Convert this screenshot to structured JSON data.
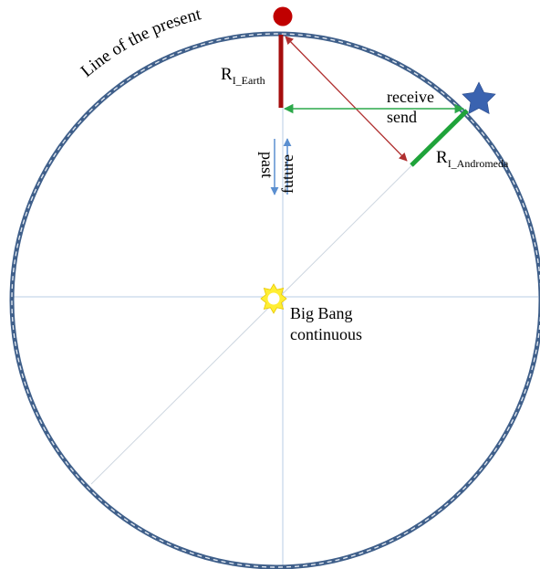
{
  "labels": {
    "line_of_present": "Line of the present",
    "r_earth_main": "R",
    "r_earth_sub": "I_Earth",
    "r_andromeda_main": "R",
    "r_andromeda_sub": "I_Andromeda",
    "receive": "receive",
    "send": "send",
    "past": "past",
    "future": "future",
    "big_bang_line1": "Big Bang",
    "big_bang_line2": "continuous"
  },
  "colors": {
    "circle_outer": "#3f5f8a",
    "circle_inner": "#dfe6ef",
    "axis": "#b8cce4",
    "earth_dot": "#c00000",
    "earth_radius": "#a50d0d",
    "signal_arrow": "#b03030",
    "andromeda_radius": "#1fa33a",
    "send_receive_arrow": "#2ca84a",
    "time_arrow": "#5b8fd0",
    "star": "#3a63b0",
    "sun": "#ffee33"
  },
  "icons": {
    "earth": "earth-dot-icon",
    "andromeda": "star-icon",
    "big_bang": "sun-icon"
  }
}
